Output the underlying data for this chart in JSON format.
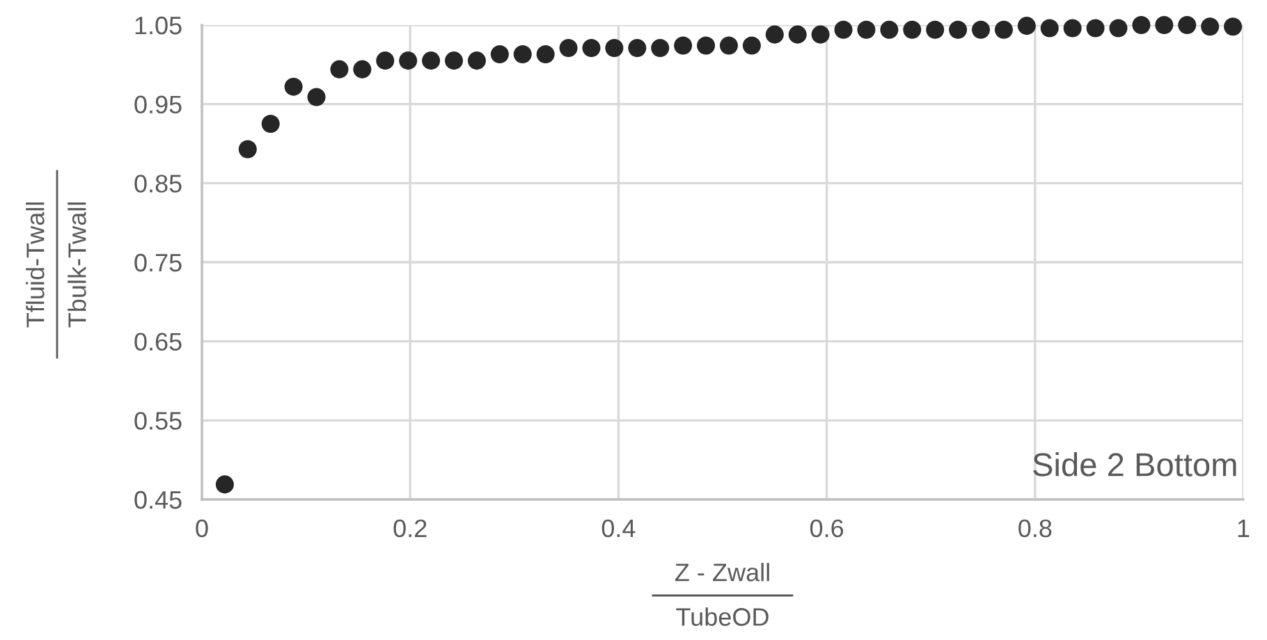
{
  "chart_data": {
    "type": "scatter",
    "xlabel": "Z - Zwall\nTubeOD",
    "ylabel": "Tfluid-Twall\nTbulk-Twall",
    "annotations": [
      "Side 2 Bottom"
    ],
    "x": [
      0.022,
      0.044,
      0.066,
      0.088,
      0.11,
      0.132,
      0.154,
      0.176,
      0.198,
      0.22,
      0.242,
      0.264,
      0.286,
      0.308,
      0.33,
      0.352,
      0.374,
      0.396,
      0.418,
      0.44,
      0.462,
      0.484,
      0.506,
      0.528,
      0.55,
      0.572,
      0.594,
      0.616,
      0.638,
      0.66,
      0.682,
      0.704,
      0.726,
      0.748,
      0.77,
      0.792,
      0.814,
      0.836,
      0.858,
      0.88,
      0.902,
      0.924,
      0.946,
      0.968,
      0.99
    ],
    "series": [
      {
        "color": "#262626",
        "values": [
          0.469,
          0.893,
          0.925,
          0.972,
          0.959,
          0.994,
          0.994,
          1.005,
          1.005,
          1.005,
          1.005,
          1.005,
          1.013,
          1.013,
          1.013,
          1.021,
          1.021,
          1.021,
          1.021,
          1.021,
          1.024,
          1.024,
          1.024,
          1.024,
          1.038,
          1.038,
          1.038,
          1.044,
          1.044,
          1.044,
          1.044,
          1.044,
          1.044,
          1.044,
          1.044,
          1.049,
          1.046,
          1.046,
          1.046,
          1.046,
          1.05,
          1.05,
          1.05,
          1.048,
          1.048
        ]
      }
    ],
    "xlim": [
      0,
      1
    ],
    "xticks": [
      0,
      0.2,
      0.4,
      0.6,
      0.8,
      1
    ],
    "ylim": [
      0.45,
      1.05
    ],
    "yticks": [
      0.45,
      0.55,
      0.65,
      0.75,
      0.85,
      0.95,
      1.05
    ],
    "grid": true,
    "marker": "circle"
  }
}
